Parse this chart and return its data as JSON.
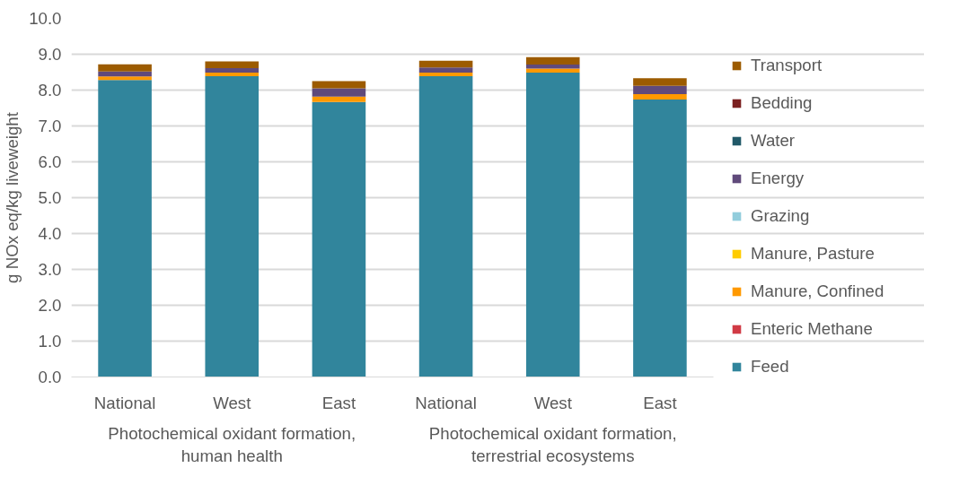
{
  "chart_data": {
    "type": "bar",
    "stacked": true,
    "ylabel": "g NOx eq/kg liveweight",
    "categories": [
      "National",
      "West",
      "East",
      "National",
      "West",
      "East"
    ],
    "annotations": [
      "Photochemical oxidant formation, human health",
      "Photochemical oxidant formation, terrestrial ecosystems"
    ],
    "series": [
      {
        "name": "Feed",
        "color": "#31859c",
        "values": [
          8.28,
          8.39,
          7.67,
          8.39,
          8.49,
          7.74
        ]
      },
      {
        "name": "Enteric Methane",
        "color": "#d13a45",
        "values": [
          0,
          0,
          0,
          0,
          0,
          0
        ]
      },
      {
        "name": "Manure, Confined",
        "color": "#ff9900",
        "values": [
          0.1,
          0.1,
          0.15,
          0.1,
          0.11,
          0.15
        ]
      },
      {
        "name": "Manure, Pasture",
        "color": "#ffcc00",
        "values": [
          0,
          0,
          0,
          0,
          0,
          0
        ]
      },
      {
        "name": "Grazing",
        "color": "#92cddc",
        "values": [
          0,
          0,
          0,
          0,
          0,
          0
        ]
      },
      {
        "name": "Energy",
        "color": "#604a7b",
        "values": [
          0.14,
          0.12,
          0.23,
          0.14,
          0.11,
          0.23
        ]
      },
      {
        "name": "Water",
        "color": "#215968",
        "values": [
          0,
          0,
          0,
          0,
          0,
          0
        ]
      },
      {
        "name": "Bedding",
        "color": "#7b2020",
        "values": [
          0,
          0,
          0,
          0,
          0,
          0
        ]
      },
      {
        "name": "Transport",
        "color": "#9c5b00",
        "values": [
          0.2,
          0.19,
          0.2,
          0.19,
          0.21,
          0.21
        ]
      }
    ],
    "ylim": [
      0,
      10
    ],
    "yticks": [
      {
        "value": 0,
        "label": "0.0"
      },
      {
        "value": 1,
        "label": "1.0"
      },
      {
        "value": 2,
        "label": "2.0"
      },
      {
        "value": 3,
        "label": "3.0"
      },
      {
        "value": 4,
        "label": "4.0"
      },
      {
        "value": 5,
        "label": "5.0"
      },
      {
        "value": 6,
        "label": "6.0"
      },
      {
        "value": 7,
        "label": "7.0"
      },
      {
        "value": 8,
        "label": "8.0"
      },
      {
        "value": 9,
        "label": "9.0"
      },
      {
        "value": 10,
        "label": "10.0"
      }
    ],
    "grid": "y",
    "legend": "right"
  }
}
